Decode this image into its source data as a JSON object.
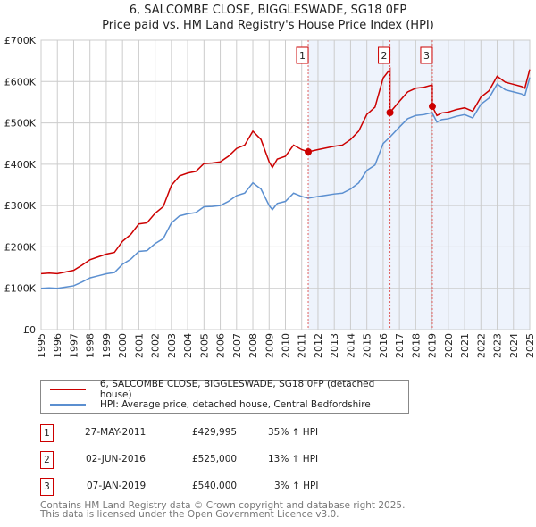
{
  "title_line1": "6, SALCOMBE CLOSE, BIGGLESWADE, SG18 0FP",
  "title_line2": "Price paid vs. HM Land Registry's House Price Index (HPI)",
  "chart_data": {
    "type": "line",
    "title": "6, SALCOMBE CLOSE, BIGGLESWADE, SG18 0FP - Price paid vs. HM Land Registry's House Price Index (HPI)",
    "xlim": [
      1995,
      2025
    ],
    "ylim": [
      0,
      700000
    ],
    "x_ticks": [
      "1995",
      "1996",
      "1997",
      "1998",
      "1999",
      "2000",
      "2001",
      "2002",
      "2003",
      "2004",
      "2005",
      "2006",
      "2007",
      "2008",
      "2009",
      "2010",
      "2011",
      "2012",
      "2013",
      "2014",
      "2015",
      "2016",
      "2017",
      "2018",
      "2019",
      "2020",
      "2021",
      "2022",
      "2023",
      "2024",
      "2025"
    ],
    "y_ticks": [
      {
        "v": 0,
        "label": "£0"
      },
      {
        "v": 100000,
        "label": "£100K"
      },
      {
        "v": 200000,
        "label": "£200K"
      },
      {
        "v": 300000,
        "label": "£300K"
      },
      {
        "v": 400000,
        "label": "£400K"
      },
      {
        "v": 500000,
        "label": "£500K"
      },
      {
        "v": 600000,
        "label": "£600K"
      },
      {
        "v": 700000,
        "label": "£700K"
      }
    ],
    "grid": true,
    "colors": {
      "property": "#cc0000",
      "hpi": "#5b8fd0",
      "shade": "#eef3fc"
    },
    "hpi_series": {
      "name": "HPI: Average price, detached house, Central Bedfordshire",
      "x": [
        1995,
        1995.5,
        1996,
        1996.5,
        1997,
        1997.5,
        1998,
        1998.5,
        1999,
        1999.5,
        2000,
        2000.5,
        2001,
        2001.5,
        2002,
        2002.5,
        2003,
        2003.5,
        2004,
        2004.5,
        2005,
        2005.5,
        2006,
        2006.5,
        2007,
        2007.5,
        2008,
        2008.5,
        2009,
        2009.2,
        2009.5,
        2010,
        2010.5,
        2011,
        2011.4,
        2012,
        2012.5,
        2013,
        2013.5,
        2014,
        2014.5,
        2015,
        2015.5,
        2016,
        2016.4,
        2017,
        2017.5,
        2018,
        2018.5,
        2019,
        2019.3,
        2019.6,
        2020,
        2020.5,
        2021,
        2021.5,
        2022,
        2022.5,
        2023,
        2023.5,
        2024,
        2024.5,
        2024.7,
        2025
      ],
      "y": [
        100000,
        101000,
        100000,
        103000,
        106000,
        115000,
        125000,
        130000,
        135000,
        138000,
        158000,
        170000,
        189000,
        191000,
        208000,
        220000,
        258000,
        275000,
        280000,
        283000,
        297000,
        298000,
        300000,
        310000,
        324000,
        330000,
        355000,
        340000,
        300000,
        290000,
        305000,
        310000,
        330000,
        322000,
        318000,
        322000,
        325000,
        328000,
        330000,
        340000,
        355000,
        385000,
        398000,
        450000,
        465000,
        490000,
        510000,
        518000,
        520000,
        525000,
        502000,
        508000,
        510000,
        516000,
        520000,
        512000,
        545000,
        560000,
        594000,
        580000,
        575000,
        570000,
        566000,
        610000
      ]
    },
    "property_series": {
      "name": "6, SALCOMBE CLOSE, BIGGLESWADE, SG18 0FP (detached house)"
    },
    "sales": [
      {
        "n": "1",
        "x": 2011.4,
        "date": "27-MAY-2011",
        "price": 429995,
        "price_label": "£429,995",
        "hpi_delta": "35% ↑ HPI"
      },
      {
        "n": "2",
        "x": 2016.42,
        "date": "02-JUN-2016",
        "price": 525000,
        "price_label": "£525,000",
        "hpi_delta": "13% ↑ HPI"
      },
      {
        "n": "3",
        "x": 2019.02,
        "date": "07-JAN-2019",
        "price": 540000,
        "price_label": "£540,000",
        "hpi_delta": "3% ↑ HPI"
      }
    ]
  },
  "legend": {
    "property": "6, SALCOMBE CLOSE, BIGGLESWADE, SG18 0FP (detached house)",
    "hpi": "HPI: Average price, detached house, Central Bedfordshire"
  },
  "footer_line1": "Contains HM Land Registry data © Crown copyright and database right 2025.",
  "footer_line2": "This data is licensed under the Open Government Licence v3.0."
}
